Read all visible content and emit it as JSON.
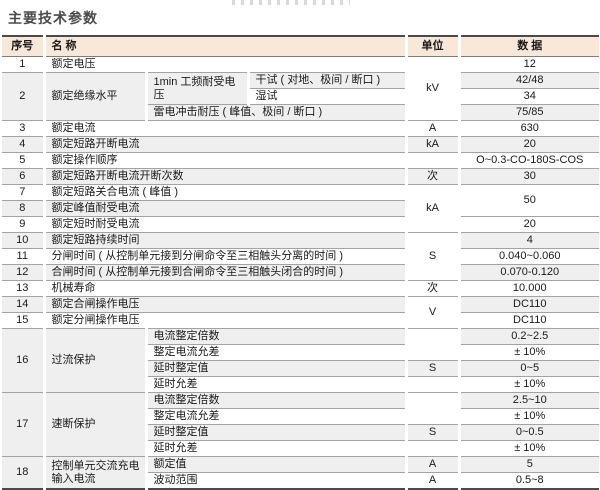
{
  "page": {
    "title": "主要技术参数"
  },
  "colors": {
    "header_bg": "#f9e7d7",
    "stripe": "#efefef",
    "line": "#a3a3a3",
    "frame": "#4a4a4a"
  },
  "table": {
    "headers": {
      "no": "序号",
      "name": "名 称",
      "unit": "单位",
      "data": "数 据"
    },
    "lines": [
      {
        "no": "1",
        "name": "额定电压",
        "unit": "kV",
        "data": "12"
      },
      {
        "no": "2",
        "name": "额定绝缘水平",
        "sub": "1min 工频耐受电压",
        "detail": "干试 ( 对地、极间 / 断口 )",
        "data": "42/48"
      },
      {
        "detail": "湿试",
        "data": "34"
      },
      {
        "detail": "雷电冲击耐压 ( 峰值、极间 / 断口 )",
        "data": "75/85"
      },
      {
        "no": "3",
        "name": "额定电流",
        "unit": "A",
        "data": "630"
      },
      {
        "no": "4",
        "name": "额定短路开断电流",
        "unit": "kA",
        "data": "20"
      },
      {
        "no": "5",
        "name": "额定操作顺序",
        "unit": "",
        "data": "O~0.3-CO-180S-COS"
      },
      {
        "no": "6",
        "name": "额定短路开断电流开断次数",
        "unit": "次",
        "data": "30"
      },
      {
        "no": "7",
        "name": "额定短路关合电流 ( 峰值 )",
        "unit": "kA",
        "data": "50"
      },
      {
        "no": "8",
        "name": "额定峰值耐受电流"
      },
      {
        "no": "9",
        "name": "额定短时耐受电流",
        "data": "20"
      },
      {
        "no": "10",
        "name": "额定短路持续时间",
        "unit": "S",
        "data": "4"
      },
      {
        "no": "11",
        "name": "分闸时间 ( 从控制单元接到分闸命令至三相触头分离的时间 )",
        "data": "0.040~0.060"
      },
      {
        "no": "12",
        "name": "合闸时间 ( 从控制单元接到合闸命令至三相触头闭合的时间 )",
        "data": "0.070-0.120"
      },
      {
        "no": "13",
        "name": "机械寿命",
        "unit": "次",
        "data": "10.000"
      },
      {
        "no": "14",
        "name": "额定合闸操作电压",
        "unit": "V",
        "data": "DC110"
      },
      {
        "no": "15",
        "name": "额定分闸操作电压",
        "data": "DC110"
      },
      {
        "no": "16",
        "name": "过流保护",
        "detail": "电流整定倍数",
        "data": "0.2~2.5"
      },
      {
        "detail": "整定电流允差",
        "data": "± 10%"
      },
      {
        "detail": "延时整定值",
        "unit": "S",
        "data": "0~5"
      },
      {
        "detail": "延时允差",
        "unit": "",
        "data": "± 10%"
      },
      {
        "no": "17",
        "name": "速断保护",
        "detail": "电流整定倍数",
        "data": "2.5~10"
      },
      {
        "detail": "整定电流允差",
        "data": "± 10%"
      },
      {
        "detail": "延时整定值",
        "unit": "S",
        "data": "0~0.5"
      },
      {
        "detail": "延时允差",
        "unit": "",
        "data": "± 10%"
      },
      {
        "no": "18",
        "name": "控制单元交流充电输入电流",
        "detail": "额定值",
        "unit": "A",
        "data": "5"
      },
      {
        "detail": "波动范围",
        "unit": "A",
        "data": "0.5~8"
      }
    ]
  }
}
